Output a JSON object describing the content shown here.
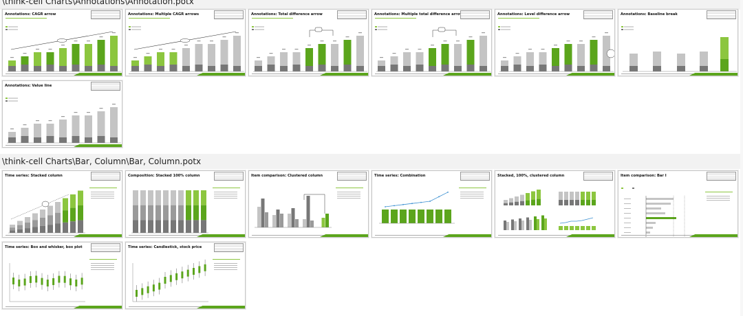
{
  "groups": [
    {
      "path": "\\think-cell Charts\\Annotations\\Annotation.potx",
      "thumbnails": [
        {
          "title": "Annotations: CAGR arrow",
          "kind": "cagr"
        },
        {
          "title": "Annotations: Multiple CAGR arrows",
          "kind": "multicagr"
        },
        {
          "title": "Annotations: Total difference arrow",
          "kind": "totaldiff"
        },
        {
          "title": "Annotations: Multiple total difference arrows",
          "kind": "multidiff"
        },
        {
          "title": "Annotations: Level difference arrow",
          "kind": "leveldiff"
        },
        {
          "title": "Annotations: Baseline break",
          "kind": "baseline"
        },
        {
          "title": "Annotations: Value line",
          "kind": "valueline"
        }
      ]
    },
    {
      "path": "\\think-cell Charts\\Bar, Column\\Bar, Column.potx",
      "thumbnails": [
        {
          "title": "Time series: Stacked column",
          "kind": "stacked"
        },
        {
          "title": "Composition: Stacked 100% column",
          "kind": "stacked100"
        },
        {
          "title": "Item comparison: Clustered column",
          "kind": "clustered"
        },
        {
          "title": "Time series: Combination",
          "kind": "combination"
        },
        {
          "title": "Stacked, 100%, clustered column",
          "kind": "multi"
        },
        {
          "title": "Item comparison: Bar I",
          "kind": "bar"
        },
        {
          "title": "Time series: Box and whisker, box plot",
          "kind": "box"
        },
        {
          "title": "Time series: Candlestick, stock price",
          "kind": "candle"
        }
      ]
    }
  ],
  "colors": {
    "green": "#5ba51c",
    "light_green": "#8cc63f",
    "dark_gray": "#777777",
    "light_gray": "#c4c4c4",
    "accent_text": "#8cc63f"
  }
}
